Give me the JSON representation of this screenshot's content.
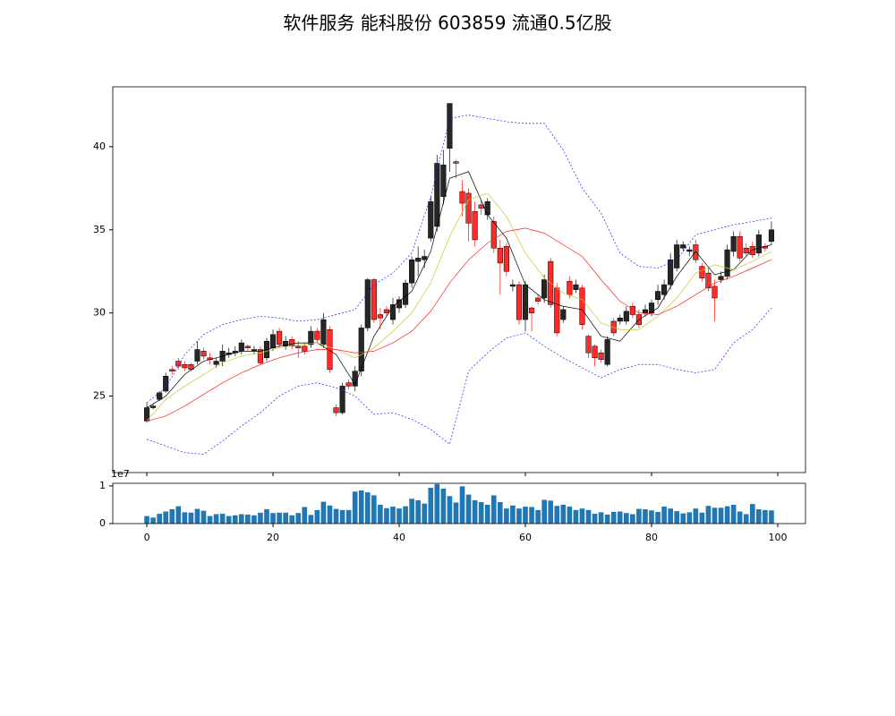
{
  "chart_data": [
    {
      "type": "candlestick",
      "title": "软件服务 能科股份 603859 流通0.5亿股",
      "x": [
        0,
        1,
        2,
        3,
        4,
        5,
        6,
        7,
        8,
        9,
        10,
        11,
        12,
        13,
        14,
        15,
        16,
        17,
        18,
        19,
        20,
        21,
        22,
        23,
        24,
        25,
        26,
        27,
        28,
        29,
        30,
        31,
        32,
        33,
        34,
        35,
        36,
        37,
        38,
        39,
        40,
        41,
        42,
        43,
        44,
        45,
        46,
        47,
        48,
        49,
        50,
        51,
        52,
        53,
        54,
        55,
        56,
        57,
        58,
        59,
        60,
        61,
        62,
        63,
        64,
        65,
        66,
        67,
        68,
        69,
        70,
        71,
        72,
        73,
        74,
        75,
        76,
        77,
        78,
        79,
        80,
        81,
        82,
        83,
        84,
        85,
        86,
        87,
        88,
        89,
        90,
        91,
        92,
        93,
        94,
        95,
        96,
        97,
        98,
        99
      ],
      "open": [
        23.5,
        24.3,
        24.8,
        25.3,
        26.6,
        27.1,
        26.9,
        26.9,
        27.1,
        27.7,
        27.3,
        26.9,
        27.1,
        27.5,
        27.6,
        27.7,
        28.0,
        27.7,
        27.8,
        27.3,
        27.9,
        28.9,
        28.0,
        28.4,
        28.0,
        28.0,
        28.1,
        28.9,
        28.1,
        29.0,
        24.3,
        24.0,
        25.8,
        25.6,
        26.5,
        29.1,
        32.0,
        29.9,
        30.2,
        29.6,
        30.3,
        30.5,
        31.8,
        33.1,
        33.2,
        34.5,
        35.2,
        37.0,
        39.9,
        39.1,
        37.3,
        37.2,
        36.1,
        36.5,
        35.9,
        35.5,
        33.9,
        34.0,
        31.6,
        31.7,
        29.6,
        30.3,
        30.9,
        30.9,
        33.1,
        31.5,
        29.6,
        31.9,
        31.4,
        31.5,
        28.6,
        28.0,
        27.6,
        26.9,
        29.5,
        29.5,
        29.5,
        30.4,
        29.9,
        30.0,
        30.0,
        30.8,
        31.1,
        31.7,
        32.7,
        33.9,
        33.7,
        34.1,
        32.8,
        32.4,
        31.6,
        32.0,
        32.2,
        33.7,
        34.6,
        33.9,
        34.0,
        33.6,
        34.0,
        34.3
      ],
      "high": [
        24.6,
        24.5,
        25.3,
        26.4,
        26.8,
        27.3,
        27.1,
        27.0,
        28.3,
        27.9,
        27.6,
        27.3,
        28.1,
        27.9,
        28.0,
        28.4,
        28.1,
        28.0,
        28.0,
        28.5,
        29.0,
        29.1,
        28.6,
        28.6,
        28.3,
        28.2,
        29.2,
        29.1,
        30.0,
        29.2,
        24.5,
        25.8,
        26.0,
        26.8,
        29.3,
        32.1,
        32.1,
        30.3,
        30.4,
        30.9,
        31.0,
        32.0,
        33.4,
        34.0,
        33.8,
        37.0,
        39.5,
        39.8,
        42.6,
        39.2,
        38.0,
        37.5,
        36.7,
        36.8,
        36.9,
        35.8,
        34.4,
        34.2,
        32.0,
        31.9,
        31.9,
        30.4,
        31.1,
        32.3,
        33.3,
        31.8,
        30.4,
        32.2,
        32.0,
        31.7,
        28.7,
        28.1,
        27.8,
        28.6,
        29.7,
        29.9,
        30.4,
        30.6,
        30.2,
        30.5,
        30.8,
        31.7,
        32.0,
        33.6,
        34.4,
        34.3,
        34.0,
        34.4,
        33.0,
        32.8,
        32.0,
        32.5,
        34.1,
        34.9,
        34.9,
        34.2,
        34.3,
        35.0,
        34.2,
        35.5
      ],
      "low": [
        23.4,
        24.2,
        24.7,
        25.2,
        26.3,
        26.6,
        26.5,
        26.5,
        26.9,
        27.2,
        26.9,
        26.7,
        26.8,
        27.3,
        27.4,
        27.5,
        27.7,
        27.5,
        26.9,
        27.1,
        27.7,
        27.9,
        27.8,
        27.8,
        27.3,
        27.5,
        27.9,
        28.2,
        27.9,
        26.4,
        23.8,
        23.9,
        25.4,
        25.3,
        26.2,
        28.9,
        29.4,
        29.0,
        29.8,
        29.3,
        30.0,
        30.3,
        31.5,
        32.2,
        32.7,
        34.3,
        34.9,
        36.5,
        38.5,
        38.1,
        35.8,
        34.3,
        34.0,
        35.9,
        35.6,
        33.6,
        31.1,
        32.2,
        31.3,
        29.3,
        28.9,
        28.9,
        30.5,
        30.6,
        30.3,
        28.6,
        29.4,
        30.9,
        31.2,
        29.0,
        27.3,
        26.8,
        27.0,
        26.8,
        28.6,
        29.3,
        29.3,
        29.7,
        29.1,
        29.8,
        29.8,
        30.5,
        30.8,
        31.4,
        32.5,
        33.7,
        33.4,
        33.0,
        31.9,
        31.3,
        29.5,
        31.8,
        32.0,
        33.4,
        33.1,
        33.4,
        33.3,
        33.4,
        33.7,
        34.1
      ],
      "close": [
        24.3,
        24.4,
        25.2,
        26.2,
        26.5,
        26.8,
        26.7,
        26.6,
        27.8,
        27.4,
        27.2,
        27.1,
        27.7,
        27.6,
        27.7,
        28.2,
        27.9,
        27.8,
        27.0,
        28.3,
        28.7,
        28.1,
        28.3,
        28.0,
        27.9,
        27.7,
        28.9,
        28.4,
        29.6,
        26.6,
        24.0,
        25.6,
        25.6,
        26.5,
        29.1,
        32.0,
        29.6,
        29.7,
        30.0,
        30.5,
        30.8,
        31.8,
        33.2,
        33.3,
        33.4,
        36.7,
        39.0,
        38.9,
        42.6,
        39.0,
        36.6,
        35.4,
        34.4,
        36.3,
        36.7,
        33.9,
        33.0,
        32.5,
        31.7,
        29.6,
        31.7,
        30.0,
        30.7,
        32.0,
        30.5,
        28.8,
        30.2,
        31.1,
        31.7,
        29.3,
        27.6,
        27.3,
        27.2,
        28.4,
        28.8,
        29.7,
        30.1,
        29.9,
        29.3,
        30.2,
        30.6,
        31.3,
        31.7,
        33.2,
        34.1,
        34.1,
        33.8,
        33.2,
        32.1,
        31.5,
        30.9,
        32.2,
        33.8,
        34.6,
        33.3,
        33.6,
        33.5,
        34.7,
        33.9,
        35.0
      ],
      "up_color": "#262626",
      "down_color": "#ff2a2a",
      "series": [
        {
          "color": "#000000",
          "linestyle": "solid",
          "x": [
            0,
            3,
            6,
            9,
            12,
            15,
            18,
            21,
            24,
            27,
            30,
            33,
            36,
            39,
            42,
            45,
            48,
            51,
            54,
            57,
            60,
            63,
            66,
            69,
            72,
            75,
            78,
            81,
            84,
            87,
            90,
            93,
            96,
            99
          ],
          "values": [
            24.3,
            25.0,
            26.3,
            27.1,
            27.4,
            27.7,
            27.7,
            28.0,
            28.2,
            28.2,
            27.5,
            25.7,
            28.6,
            30.4,
            31.3,
            33.7,
            38.1,
            38.5,
            35.9,
            34.5,
            31.7,
            30.8,
            30.4,
            30.2,
            28.6,
            28.3,
            29.6,
            30.3,
            32.2,
            33.7,
            32.3,
            32.6,
            33.8,
            34.1
          ]
        },
        {
          "color": "#c8c832",
          "linestyle": "solid",
          "x": [
            0,
            3,
            6,
            9,
            12,
            15,
            18,
            21,
            24,
            27,
            30,
            33,
            36,
            39,
            42,
            45,
            48,
            51,
            54,
            57,
            60,
            63,
            66,
            69,
            72,
            75,
            78,
            81,
            84,
            87,
            90,
            93,
            96,
            99
          ],
          "values": [
            23.5,
            24.8,
            25.6,
            26.3,
            27.0,
            27.4,
            27.6,
            27.9,
            28.1,
            28.2,
            27.8,
            27.3,
            27.9,
            28.9,
            30.0,
            31.8,
            34.6,
            36.8,
            37.2,
            35.8,
            33.6,
            32.1,
            31.2,
            30.8,
            29.4,
            29.0,
            29.0,
            29.8,
            30.9,
            32.4,
            32.9,
            32.6,
            33.1,
            33.7
          ]
        },
        {
          "color": "#ff2020",
          "linestyle": "solid",
          "x": [
            0,
            3,
            6,
            9,
            12,
            15,
            18,
            21,
            24,
            27,
            30,
            33,
            36,
            39,
            42,
            45,
            48,
            51,
            54,
            57,
            60,
            63,
            66,
            69,
            72,
            75,
            78,
            81,
            84,
            87,
            90,
            93,
            96,
            99
          ],
          "values": [
            23.5,
            23.8,
            24.4,
            25.1,
            25.8,
            26.4,
            26.9,
            27.3,
            27.6,
            27.8,
            27.8,
            27.6,
            27.7,
            28.2,
            28.9,
            30.1,
            31.8,
            33.2,
            34.2,
            34.9,
            35.1,
            34.8,
            34.1,
            33.4,
            32.0,
            30.7,
            30.0,
            29.9,
            30.4,
            31.1,
            31.8,
            32.2,
            32.7,
            33.2
          ]
        },
        {
          "color": "#2020ff",
          "linestyle": "dashed",
          "x": [
            0,
            3,
            6,
            9,
            12,
            15,
            18,
            21,
            24,
            27,
            30,
            33,
            36,
            39,
            42,
            45,
            48,
            51,
            54,
            57,
            60,
            63,
            66,
            69,
            72,
            75,
            78,
            81,
            84,
            87,
            90,
            93,
            96,
            99
          ],
          "values": [
            24.6,
            25.5,
            27.5,
            28.7,
            29.3,
            29.6,
            29.8,
            29.7,
            29.5,
            29.6,
            29.9,
            30.2,
            31.7,
            32.4,
            33.6,
            37.0,
            41.7,
            41.9,
            41.7,
            41.5,
            41.4,
            41.4,
            39.8,
            37.5,
            36.0,
            33.6,
            32.8,
            32.7,
            33.2,
            34.7,
            35.0,
            35.3,
            35.5,
            35.7
          ]
        },
        {
          "color": "#2020ff",
          "linestyle": "dashed",
          "x": [
            0,
            3,
            6,
            9,
            12,
            15,
            18,
            21,
            24,
            27,
            30,
            33,
            36,
            39,
            42,
            45,
            48,
            51,
            54,
            57,
            60,
            63,
            66,
            69,
            72,
            75,
            78,
            81,
            84,
            87,
            90,
            93,
            96,
            99
          ],
          "values": [
            22.4,
            22.0,
            21.6,
            21.5,
            22.3,
            23.2,
            24.0,
            25.0,
            25.6,
            25.8,
            25.5,
            25.0,
            23.9,
            24.0,
            23.6,
            23.0,
            22.1,
            26.5,
            27.6,
            28.5,
            28.8,
            28.0,
            27.3,
            26.7,
            26.1,
            26.6,
            26.9,
            26.9,
            26.6,
            26.4,
            26.6,
            28.2,
            29.0,
            30.3
          ]
        }
      ],
      "xlim": [
        -5.4,
        104.4
      ],
      "xticks": [
        0,
        20,
        40,
        60,
        80,
        100
      ],
      "ylim": [
        20.4,
        43.6
      ],
      "yticks": [
        25,
        30,
        35,
        40
      ]
    },
    {
      "type": "bar",
      "offset_text": "1e7",
      "color": "#1f77b4",
      "x": [
        0,
        1,
        2,
        3,
        4,
        5,
        6,
        7,
        8,
        9,
        10,
        11,
        12,
        13,
        14,
        15,
        16,
        17,
        18,
        19,
        20,
        21,
        22,
        23,
        24,
        25,
        26,
        27,
        28,
        29,
        30,
        31,
        32,
        33,
        34,
        35,
        36,
        37,
        38,
        39,
        40,
        41,
        42,
        43,
        44,
        45,
        46,
        47,
        48,
        49,
        50,
        51,
        52,
        53,
        54,
        55,
        56,
        57,
        58,
        59,
        60,
        61,
        62,
        63,
        64,
        65,
        66,
        67,
        68,
        69,
        70,
        71,
        72,
        73,
        74,
        75,
        76,
        77,
        78,
        79,
        80,
        81,
        82,
        83,
        84,
        85,
        86,
        87,
        88,
        89,
        90,
        91,
        92,
        93,
        94,
        95,
        96,
        97,
        98,
        99
      ],
      "values": [
        2000000,
        1600000,
        2600000,
        3200000,
        3800000,
        4600000,
        3000000,
        2900000,
        3900000,
        3400000,
        2000000,
        2500000,
        2600000,
        2000000,
        2200000,
        2500000,
        2400000,
        2200000,
        2900000,
        3800000,
        2800000,
        2900000,
        2900000,
        2200000,
        2800000,
        4400000,
        2300000,
        3600000,
        5800000,
        4800000,
        3900000,
        3600000,
        3600000,
        8500000,
        8800000,
        8300000,
        7500000,
        5000000,
        4100000,
        4500000,
        4000000,
        4600000,
        6600000,
        6200000,
        5300000,
        9500000,
        10500000,
        9300000,
        7300000,
        5600000,
        9900000,
        7700000,
        6200000,
        5700000,
        5000000,
        7500000,
        5700000,
        4000000,
        4800000,
        4000000,
        4500000,
        4400000,
        3600000,
        6300000,
        6100000,
        4700000,
        5000000,
        4500000,
        3600000,
        4000000,
        3600000,
        2600000,
        3000000,
        2400000,
        3100000,
        3200000,
        2800000,
        2500000,
        3900000,
        3800000,
        3500000,
        3100000,
        4500000,
        4000000,
        3300000,
        2700000,
        3000000,
        4000000,
        2900000,
        4700000,
        4200000,
        4200000,
        4600000,
        5000000,
        3200000,
        2500000,
        5200000,
        3800000,
        3600000,
        3500000
      ],
      "xlim": [
        -5.4,
        104.4
      ],
      "xticks": [
        0,
        20,
        40,
        60,
        80,
        100
      ],
      "ylim": [
        0,
        10700000
      ],
      "yticks": [
        0,
        {
          "value": 10000000,
          "label": "1"
        }
      ]
    }
  ]
}
